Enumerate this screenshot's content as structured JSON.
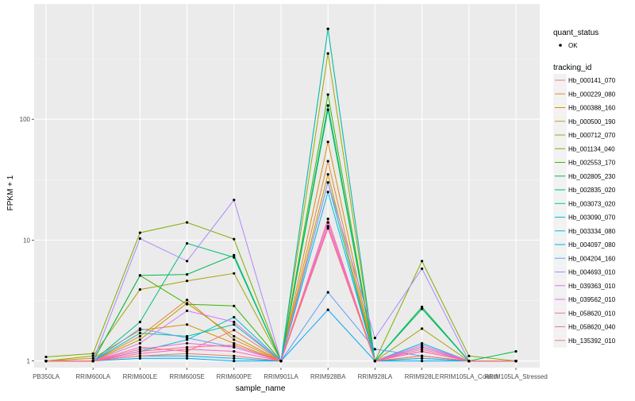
{
  "chart_data": {
    "type": "line",
    "xlabel": "sample_name",
    "ylabel": "FPKM + 1",
    "yscale": "log10",
    "ylim": [
      0.88,
      900
    ],
    "y_ticks": [
      1,
      10,
      100
    ],
    "y_tick_labels": [
      "1",
      "10",
      "100"
    ],
    "grid": true,
    "legend_position": "right",
    "categories": [
      "PB350LA",
      "RRIM600LA",
      "RRIM600LE",
      "RRIM600SE",
      "RRIM600PE",
      "RRIM901LA",
      "RRIM928BA",
      "RRIM928LA",
      "RRIM928LE",
      "RRIM105LA_Control",
      "RRIM105LA_Stressed"
    ],
    "quant_status_legend": {
      "title": "quant_status",
      "items": [
        "OK"
      ]
    },
    "series_legend_title": "tracking_id",
    "series": [
      {
        "name": "Hb_000141_070",
        "color": "#F8766D",
        "values": [
          1.0,
          1.0,
          1.3,
          1.2,
          1.8,
          1.0,
          14,
          1.0,
          1.05,
          1.0,
          1.0
        ]
      },
      {
        "name": "Hb_000229_080",
        "color": "#EA8331",
        "values": [
          1.0,
          1.0,
          1.6,
          3.2,
          1.5,
          1.0,
          45,
          1.0,
          1.3,
          1.0,
          1.0
        ]
      },
      {
        "name": "Hb_000388_160",
        "color": "#D89000",
        "values": [
          1.0,
          1.05,
          1.8,
          2.0,
          1.4,
          1.0,
          65,
          1.0,
          1.2,
          1.0,
          1.0
        ]
      },
      {
        "name": "Hb_000500_190",
        "color": "#C09B00",
        "values": [
          1.0,
          1.0,
          1.5,
          3.0,
          1.6,
          1.0,
          35,
          1.0,
          1.1,
          1.0,
          1.0
        ]
      },
      {
        "name": "Hb_000712_070",
        "color": "#A3A500",
        "values": [
          1.0,
          1.1,
          3.9,
          4.6,
          5.3,
          1.0,
          350,
          1.0,
          1.85,
          1.0,
          1.0
        ]
      },
      {
        "name": "Hb_001134_040",
        "color": "#7CAE00",
        "values": [
          1.08,
          1.15,
          11.5,
          14,
          10.2,
          1.0,
          560,
          1.0,
          6.7,
          1.1,
          1.0
        ]
      },
      {
        "name": "Hb_002553_170",
        "color": "#39B600",
        "values": [
          1.0,
          1.0,
          5.1,
          2.95,
          2.85,
          1.0,
          160,
          1.0,
          2.7,
          1.0,
          1.0
        ]
      },
      {
        "name": "Hb_002805_230",
        "color": "#00BB4E",
        "values": [
          1.0,
          1.0,
          5.1,
          5.2,
          7.5,
          1.0,
          120,
          1.0,
          2.8,
          1.0,
          1.2
        ]
      },
      {
        "name": "Hb_002835_020",
        "color": "#00BF7D",
        "values": [
          1.0,
          1.0,
          2.1,
          9.4,
          7.2,
          1.0,
          130,
          1.0,
          2.7,
          1.0,
          1.0
        ]
      },
      {
        "name": "Hb_003073_020",
        "color": "#00C1A3",
        "values": [
          1.0,
          1.0,
          1.7,
          1.6,
          2.0,
          1.0,
          30,
          1.0,
          1.3,
          1.0,
          1.0
        ]
      },
      {
        "name": "Hb_003090_070",
        "color": "#00BFC4",
        "values": [
          1.0,
          1.0,
          1.2,
          1.5,
          2.3,
          1.0,
          560,
          1.0,
          1.4,
          1.0,
          1.0
        ]
      },
      {
        "name": "Hb_003334_080",
        "color": "#00B8E7",
        "values": [
          1.0,
          1.0,
          1.1,
          1.1,
          1.05,
          1.0,
          25,
          1.0,
          1.05,
          1.0,
          1.0
        ]
      },
      {
        "name": "Hb_004097_080",
        "color": "#00A9FF",
        "values": [
          1.0,
          1.0,
          1.05,
          1.05,
          1.0,
          1.0,
          2.65,
          1.0,
          1.0,
          1.0,
          1.0
        ]
      },
      {
        "name": "Hb_004204_160",
        "color": "#619CFF",
        "values": [
          1.0,
          1.0,
          1.85,
          1.55,
          1.3,
          1.0,
          3.7,
          1.25,
          1.1,
          1.0,
          1.0
        ]
      },
      {
        "name": "Hb_004693_010",
        "color": "#AE87FF",
        "values": [
          1.0,
          1.0,
          10.3,
          6.7,
          21.5,
          1.0,
          30,
          1.55,
          5.8,
          1.0,
          1.0
        ]
      },
      {
        "name": "Hb_039363_010",
        "color": "#DB72FB",
        "values": [
          1.0,
          1.0,
          1.4,
          2.6,
          2.1,
          1.0,
          14,
          1.0,
          1.3,
          1.0,
          1.0
        ]
      },
      {
        "name": "Hb_039562_010",
        "color": "#F564E3",
        "values": [
          1.0,
          1.0,
          1.25,
          1.4,
          1.3,
          1.0,
          13,
          1.0,
          1.35,
          1.0,
          1.0
        ]
      },
      {
        "name": "Hb_058620_010",
        "color": "#FF61C3",
        "values": [
          1.0,
          1.0,
          1.15,
          1.25,
          1.2,
          1.0,
          13,
          1.0,
          1.2,
          1.0,
          1.0
        ]
      },
      {
        "name": "Hb_058620_040",
        "color": "#FF6C91",
        "values": [
          1.0,
          1.0,
          1.2,
          1.3,
          1.35,
          1.0,
          15,
          1.0,
          1.25,
          1.0,
          1.0
        ]
      },
      {
        "name": "Hb_135392_010",
        "color": "#F8766D",
        "values": [
          1.0,
          1.0,
          1.1,
          1.15,
          1.1,
          1.0,
          12.5,
          1.0,
          1.1,
          1.0,
          1.0
        ]
      }
    ]
  }
}
